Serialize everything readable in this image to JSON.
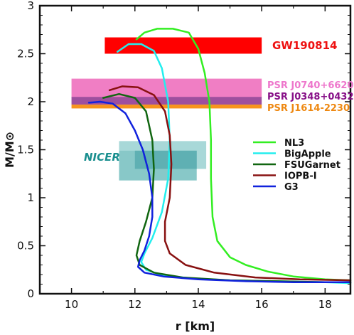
{
  "chart_data": {
    "type": "line",
    "xlabel": "r [km]",
    "ylabel": "M/M⊙",
    "xlim": [
      9,
      18.8
    ],
    "ylim": [
      0,
      3
    ],
    "xticks": [
      10,
      12,
      14,
      16,
      18
    ],
    "yticks": [
      0,
      0.5,
      1,
      1.5,
      2,
      2.5,
      3
    ],
    "ytick_labels": [
      "0",
      "0.5",
      "1",
      "1.5",
      "2",
      "2.5",
      "3"
    ],
    "grid": false,
    "legend_position": "right",
    "series": [
      {
        "name": "NL3",
        "color": "#33ee22",
        "x": [
          12.05,
          12.3,
          12.7,
          13.2,
          13.7,
          14.0,
          14.2,
          14.35,
          14.4,
          14.4,
          14.45,
          14.6,
          15.0,
          15.5,
          16.2,
          17.0,
          18.0,
          18.8
        ],
        "y": [
          2.65,
          2.72,
          2.76,
          2.76,
          2.72,
          2.55,
          2.3,
          2.0,
          1.6,
          1.2,
          0.8,
          0.55,
          0.38,
          0.3,
          0.23,
          0.18,
          0.15,
          0.14
        ]
      },
      {
        "name": "BigApple",
        "color": "#22eeee",
        "x": [
          11.45,
          11.8,
          12.2,
          12.6,
          12.85,
          13.05,
          13.1,
          13.05,
          12.85,
          12.55,
          12.3,
          12.2,
          12.35,
          12.9,
          13.8,
          15.0,
          16.5,
          18.0,
          18.8
        ],
        "y": [
          2.52,
          2.6,
          2.6,
          2.53,
          2.35,
          2.0,
          1.6,
          1.2,
          0.85,
          0.58,
          0.42,
          0.33,
          0.25,
          0.19,
          0.16,
          0.14,
          0.13,
          0.12,
          0.11
        ]
      },
      {
        "name": "FSUGarnet",
        "color": "#116611",
        "x": [
          11.0,
          11.5,
          12.0,
          12.35,
          12.55,
          12.6,
          12.55,
          12.35,
          12.15,
          12.05,
          12.15,
          12.6,
          13.5,
          15.0,
          16.5,
          18.0,
          18.8
        ],
        "y": [
          2.04,
          2.08,
          2.04,
          1.9,
          1.6,
          1.3,
          1.0,
          0.75,
          0.55,
          0.4,
          0.3,
          0.22,
          0.17,
          0.14,
          0.13,
          0.12,
          0.12
        ]
      },
      {
        "name": "IOPB-I",
        "color": "#881111",
        "x": [
          11.2,
          11.6,
          12.1,
          12.6,
          12.95,
          13.1,
          13.15,
          13.1,
          12.95,
          12.95,
          13.1,
          13.6,
          14.5,
          15.8,
          17.2,
          18.8
        ],
        "y": [
          2.12,
          2.16,
          2.15,
          2.07,
          1.9,
          1.65,
          1.35,
          1.0,
          0.75,
          0.55,
          0.42,
          0.3,
          0.22,
          0.17,
          0.15,
          0.14
        ]
      },
      {
        "name": "G3",
        "color": "#1122dd",
        "x": [
          10.55,
          10.9,
          11.3,
          11.7,
          12.0,
          12.25,
          12.45,
          12.55,
          12.55,
          12.45,
          12.3,
          12.15,
          12.1,
          12.3,
          12.9,
          14.0,
          15.5,
          17.0,
          18.8
        ],
        "y": [
          1.99,
          2.0,
          1.98,
          1.88,
          1.7,
          1.5,
          1.25,
          1.0,
          0.8,
          0.6,
          0.45,
          0.35,
          0.28,
          0.22,
          0.18,
          0.15,
          0.13,
          0.12,
          0.12
        ]
      }
    ],
    "bands": [
      {
        "label": "GW190814",
        "color": "#ff0000",
        "text_color": "#ee1111",
        "x0": 11.05,
        "x1": 16.0,
        "y0": 2.5,
        "y1": 2.67
      },
      {
        "label": "PSR J0740+6620",
        "color": "#f07ec4",
        "text_color": "#ee77cc",
        "x0": 10.0,
        "x1": 16.0,
        "y0": 2.04,
        "y1": 2.24
      },
      {
        "label": "PSR J0348+0432",
        "color": "#9e4f9e",
        "text_color": "#881188",
        "x0": 10.0,
        "x1": 16.0,
        "y0": 1.97,
        "y1": 2.05
      },
      {
        "label": "PSR J1614-2230",
        "color": "#f7941d",
        "text_color": "#ee8811",
        "x0": 10.0,
        "x1": 16.0,
        "y0": 1.93,
        "y1": 1.97
      }
    ],
    "nicer": {
      "label": "NICER",
      "text_color": "#1a8f8f",
      "boxes": [
        {
          "x0": 11.5,
          "x1": 14.25,
          "y0": 1.3,
          "y1": 1.59,
          "color": "#a8d8d8"
        },
        {
          "x0": 11.5,
          "x1": 13.95,
          "y0": 1.18,
          "y1": 1.49,
          "color": "#88c8c8"
        },
        {
          "x0": 12.0,
          "x1": 13.95,
          "y0": 1.3,
          "y1": 1.49,
          "color": "#5fb0b3"
        }
      ]
    }
  }
}
